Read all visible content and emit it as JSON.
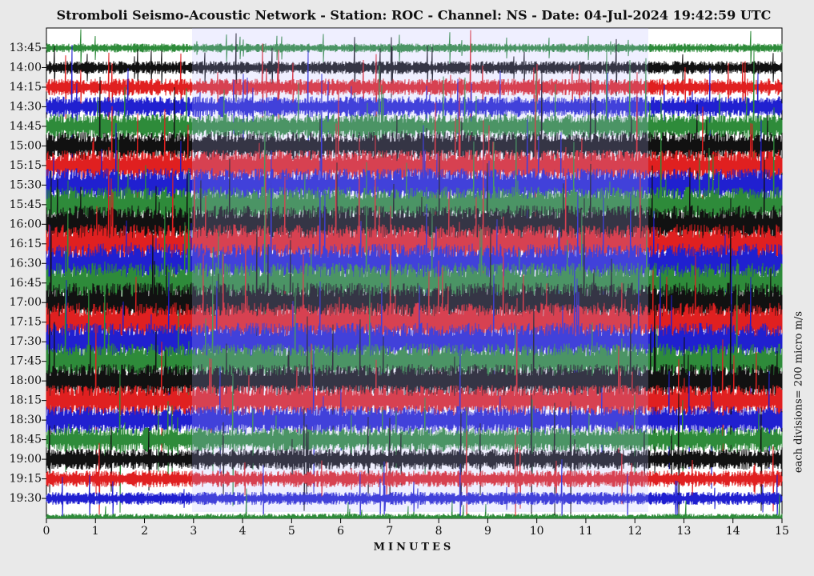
{
  "chart_data": {
    "type": "helicorder",
    "title": "Stromboli Seismo-Acoustic Network - Station: ROC - Channel: NS - Date: 04-Jul-2024 19:42:59 UTC",
    "categories": [
      "13:45",
      "14:00",
      "14:15",
      "14:30",
      "14:45",
      "15:00",
      "15:15",
      "15:30",
      "15:45",
      "16:00",
      "16:15",
      "16:30",
      "16:45",
      "17:00",
      "17:15",
      "17:30",
      "17:45",
      "18:00",
      "18:15",
      "18:30",
      "18:45",
      "19:00",
      "19:15",
      "19:30"
    ],
    "colors": [
      "#2e8b3a",
      "#111111",
      "#e02020",
      "#2020d0"
    ],
    "xlim": [
      0,
      15
    ],
    "xticks": [
      0,
      1,
      2,
      3,
      4,
      5,
      6,
      7,
      8,
      9,
      10,
      11,
      12,
      13,
      14,
      15
    ],
    "xlabel": "MINUTES",
    "ylabel": "each divisions= 200 micro m/s"
  }
}
